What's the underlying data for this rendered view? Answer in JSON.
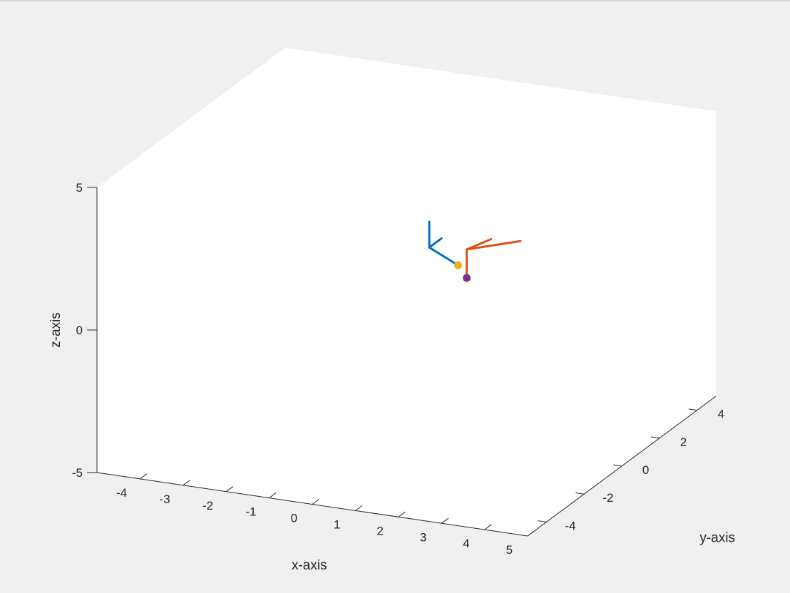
{
  "chart_data": {
    "type": "line",
    "title": "",
    "xlabel": "x-axis",
    "ylabel": "y-axis",
    "zlabel": "z-axis",
    "xlim": [
      -5,
      5
    ],
    "ylim": [
      -5,
      5
    ],
    "zlim": [
      -5,
      5
    ],
    "xticks": [
      -4,
      -3,
      -2,
      -1,
      0,
      1,
      2,
      3,
      4,
      5
    ],
    "yticks": [
      -4,
      -2,
      0,
      2,
      4
    ],
    "zticks": [
      -5,
      0,
      5
    ],
    "grid": false,
    "view": "3d",
    "series": [
      {
        "color": "#0072bd",
        "segments": [
          [
            [
              0.4,
              0.3,
              1.5
            ],
            [
              0.4,
              0.3,
              2.4
            ]
          ],
          [
            [
              0.4,
              0.3,
              1.5
            ],
            [
              1.2,
              0.0,
              1.2
            ]
          ],
          [
            [
              0.4,
              0.3,
              1.5
            ],
            [
              0.4,
              0.95,
              1.5
            ]
          ]
        ]
      },
      {
        "color": "#d95319",
        "segments": [
          [
            [
              1.4,
              0.0,
              0.8
            ],
            [
              1.4,
              0.0,
              1.8
            ]
          ],
          [
            [
              1.4,
              0.0,
              1.8
            ],
            [
              1.9,
              0.15,
              2.2
            ]
          ],
          [
            [
              1.4,
              0.0,
              1.8
            ],
            [
              2.3,
              0.8,
              1.9
            ]
          ]
        ]
      }
    ],
    "points": [
      {
        "x": 1.2,
        "y": 0.0,
        "z": 1.2,
        "color": "#edb120"
      },
      {
        "x": 1.4,
        "y": 0.0,
        "z": 0.8,
        "color": "#7e2f8e"
      }
    ]
  }
}
